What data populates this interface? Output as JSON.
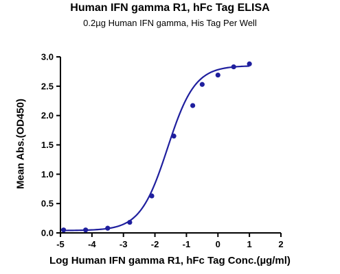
{
  "chart_data": {
    "type": "scatter",
    "title": "Human IFN gamma R1, hFc Tag ELISA",
    "subtitle": "0.2µg Human IFN gamma, His Tag Per Well",
    "xlabel": "Log Human IFN gamma R1, hFc Tag Conc.(µg/ml)",
    "ylabel": "Mean Abs.(OD450)",
    "xlim": [
      -5,
      2
    ],
    "ylim": [
      0,
      3.0
    ],
    "xticks": [
      -5,
      -4,
      -3,
      -2,
      -1,
      0,
      1,
      2
    ],
    "yticks": [
      0.0,
      0.5,
      1.0,
      1.5,
      2.0,
      2.5,
      3.0
    ],
    "xtick_labels": [
      "-5",
      "-4",
      "-3",
      "-2",
      "-1",
      "0",
      "1",
      "2"
    ],
    "ytick_labels": [
      "0.0",
      "0.5",
      "1.0",
      "1.5",
      "2.0",
      "2.5",
      "3.0"
    ],
    "grid": false,
    "series": [
      {
        "color": "#1f1f9e",
        "x": [
          -4.9,
          -4.2,
          -3.5,
          -2.8,
          -2.1,
          -1.4,
          -0.8,
          -0.5,
          0.0,
          0.5,
          1.0
        ],
        "y": [
          0.05,
          0.05,
          0.08,
          0.18,
          0.63,
          1.65,
          2.17,
          2.53,
          2.69,
          2.83,
          2.88
        ]
      }
    ],
    "fit_curve": {
      "type": "4PL",
      "color": "#1f1f9e",
      "bottom": 0.04,
      "top": 2.85,
      "log_ec50": -1.6,
      "hill_slope": 1.0
    }
  }
}
